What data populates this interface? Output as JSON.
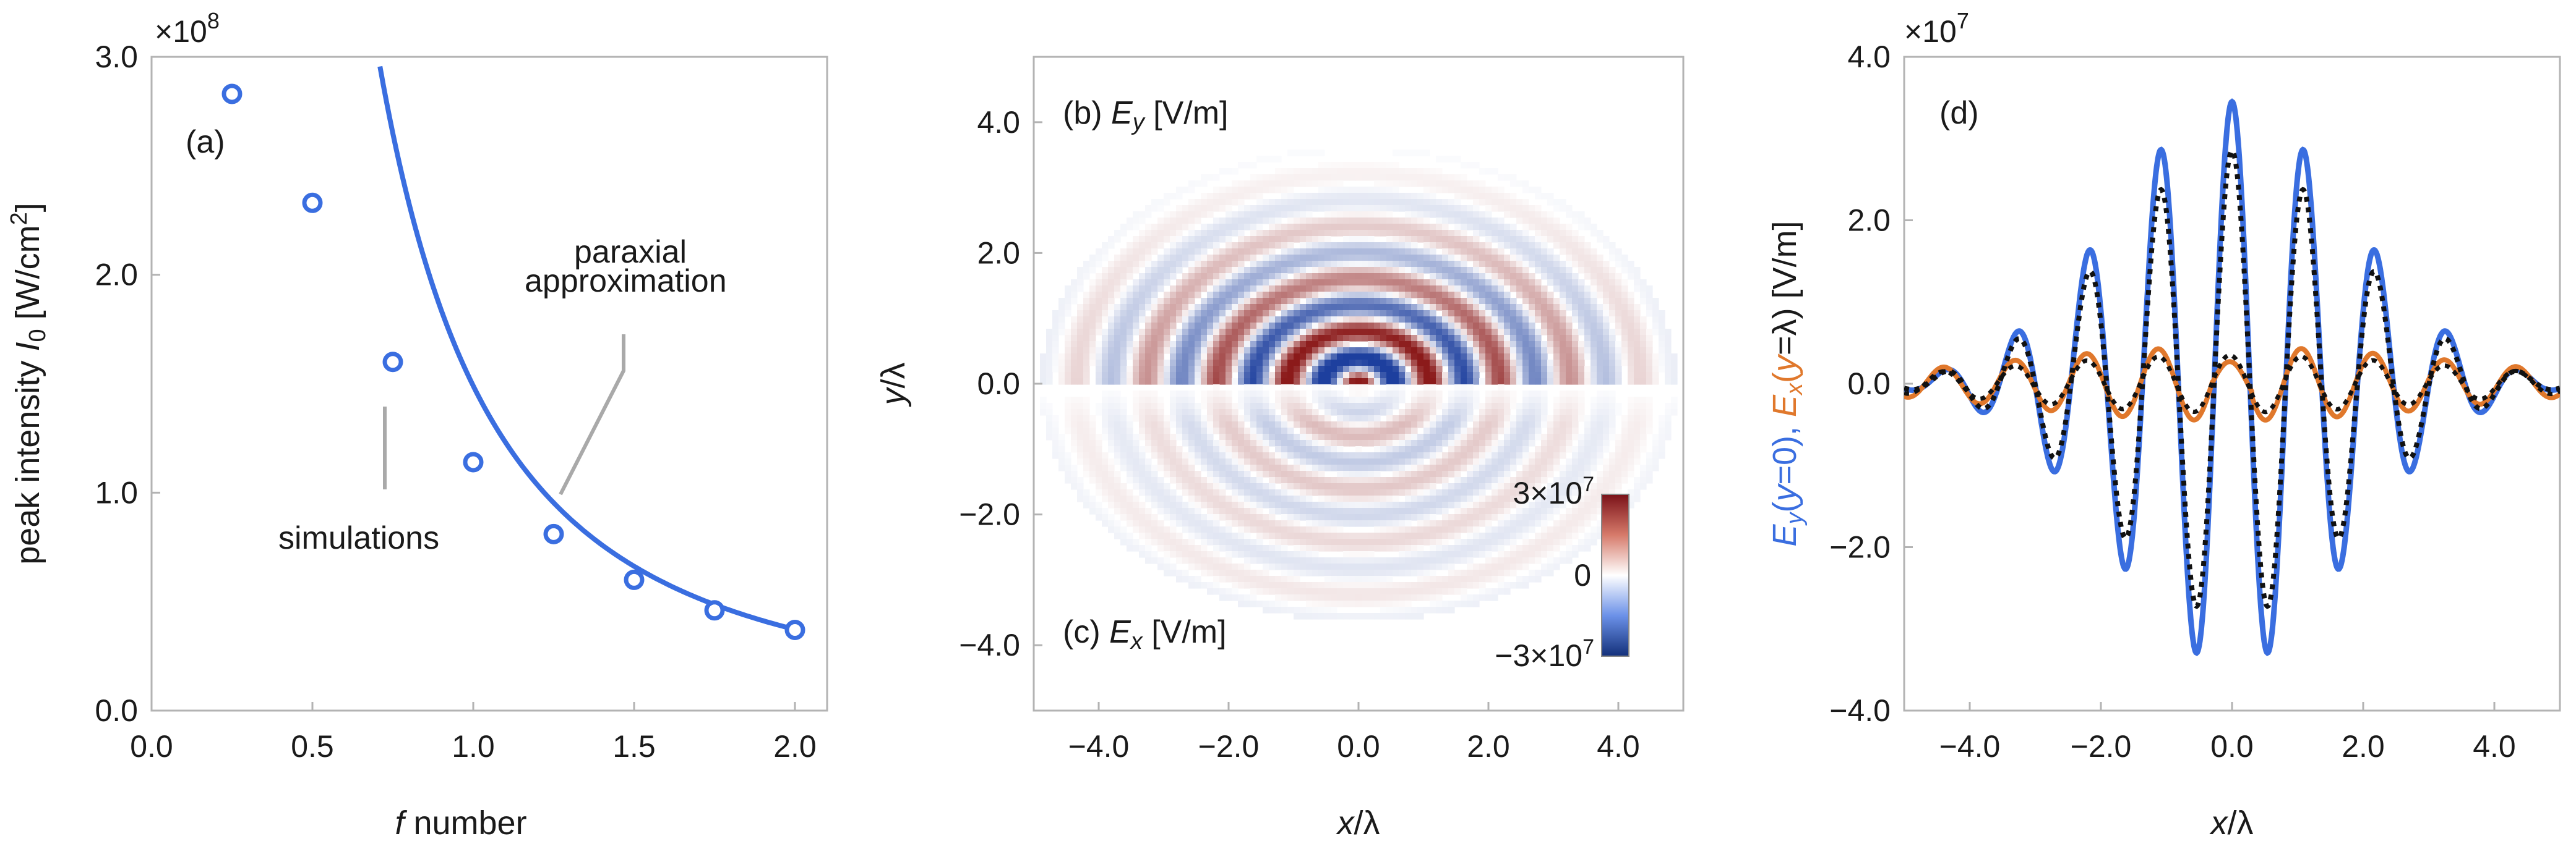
{
  "chart_data": [
    {
      "panel": "a",
      "type": "scatter",
      "panel_label": "(a)",
      "xlabel_italic": "f",
      "xlabel_rest": " number",
      "ylabel": "peak intensity ",
      "ylabel_sym": "I",
      "ylabel_sub": "0",
      "ylabel_unit": " [W/cm",
      "ylabel_sup": "2",
      "ylabel_end": "]",
      "exponent_base": "×10",
      "exponent_power": "8",
      "xlim": [
        0,
        2.1
      ],
      "ylim": [
        0,
        3.0
      ],
      "xticks": [
        "0.0",
        "0.5",
        "1.0",
        "1.5",
        "2.0"
      ],
      "yticks": [
        "0.0",
        "1.0",
        "2.0",
        "3.0"
      ],
      "series": [
        {
          "kind": "markers",
          "x": [
            0.25,
            0.5,
            0.75,
            1.0,
            1.25,
            1.5,
            1.75,
            2.0
          ],
          "y": [
            2.83,
            2.33,
            1.6,
            1.14,
            0.81,
            0.6,
            0.46,
            0.37
          ]
        },
        {
          "kind": "line",
          "formula": "1.49 / f^2 (paraxial approximation)"
        }
      ],
      "annotations": {
        "simulations": "simulations",
        "paraxial_1": "paraxial",
        "paraxial_2": "approximation"
      },
      "colors": {
        "series": "#3a6ee0",
        "callout": "#a9a9a9"
      }
    },
    {
      "panel": "b-c",
      "type": "heatmap",
      "label_b_prefix": "(b) ",
      "label_b_sym": "E",
      "label_b_sub": "y",
      "label_b_unit": " [V/m]",
      "label_c_prefix": "(c) ",
      "label_c_sym": "E",
      "label_c_sub": "x",
      "label_c_unit": " [V/m]",
      "xlabel_sym": "x",
      "xlabel_rest": "/λ",
      "ylabel_sym": "y",
      "ylabel_rest": "/λ",
      "xlim": [
        -5,
        5
      ],
      "ylim": [
        -5,
        5
      ],
      "xticks": [
        "−4.0",
        "−2.0",
        "0.0",
        "2.0",
        "4.0"
      ],
      "yticks": [
        "4.0",
        "2.0",
        "0.0",
        "−2.0",
        "−4.0"
      ],
      "colorbar": {
        "max_label": "3×10",
        "max_power": "7",
        "mid_label": "0",
        "min_label": "−3×10",
        "min_power": "7",
        "range": [
          -30000000,
          30000000
        ]
      },
      "colors": {
        "positive": "#8b1a1a",
        "negative": "#1d3f9e",
        "zero": "#ffffff"
      }
    },
    {
      "panel": "d",
      "type": "line",
      "panel_label": "(d)",
      "xlabel_sym": "x",
      "xlabel_rest": "/λ",
      "ylabel_parts": [
        "E",
        "y",
        "(",
        "y",
        "=0), ",
        "E",
        "x",
        "(",
        "y",
        "=λ) [V/m]"
      ],
      "exponent_base": "×10",
      "exponent_power": "7",
      "xlim": [
        -5,
        5
      ],
      "ylim": [
        -4.0,
        4.0
      ],
      "xticks": [
        "−4.0",
        "−2.0",
        "0.0",
        "2.0",
        "4.0"
      ],
      "yticks": [
        "4.0",
        "2.0",
        "0.0",
        "−2.0",
        "−4.0"
      ],
      "series": [
        {
          "id": "Ey_y0",
          "style": "solid",
          "color": "#3a6ee0",
          "peak": 3.45,
          "width": 1.8,
          "k": 5.75
        },
        {
          "id": "Ex_ylam",
          "style": "solid",
          "color": "#e0782c",
          "peak": 0.45,
          "width": 3.5,
          "k": 5.75
        },
        {
          "id": "dotted",
          "style": "dotted",
          "color": "#111111",
          "peak": 2.85,
          "width": 1.8,
          "k": 5.75
        }
      ],
      "colors": {
        "Ey": "#3a6ee0",
        "Ex": "#e0782c",
        "text": "#1a1a1a"
      }
    }
  ]
}
